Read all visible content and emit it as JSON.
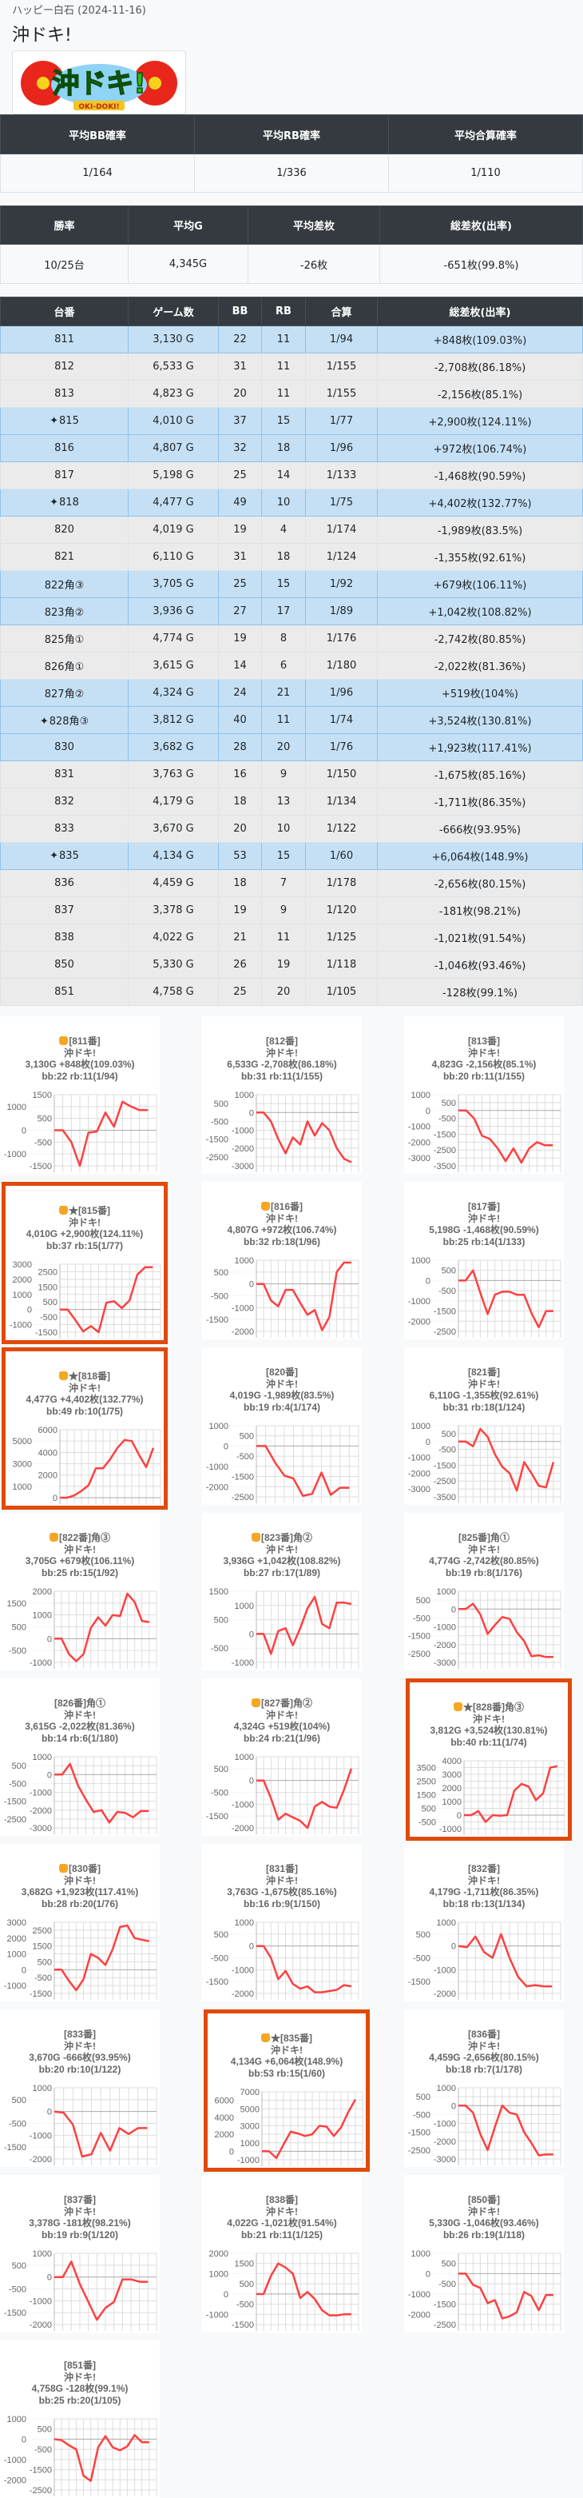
{
  "header": {
    "store": "ハッピー白石 (2024-11-16)",
    "machine": "沖ドキ!",
    "logo_text": "沖ドキ! OKI-DOKI!"
  },
  "summary1": {
    "headers": [
      "平均BB確率",
      "平均RB確率",
      "平均合算確率"
    ],
    "values": [
      "1/164",
      "1/336",
      "1/110"
    ]
  },
  "summary2": {
    "headers": [
      "勝率",
      "平均G",
      "平均差枚",
      "総差枚(出率)"
    ],
    "values": [
      "10/25台",
      "4,345G",
      "-26枚",
      "-651枚(99.8%)"
    ]
  },
  "machines": {
    "headers": [
      "台番",
      "ゲーム数",
      "BB",
      "RB",
      "合算",
      "総差枚(出率)"
    ],
    "rows": [
      {
        "no": "811",
        "g": "3,130 G",
        "bb": "22",
        "rb": "11",
        "total": "1/94",
        "diff": "+848枚(109.03%)",
        "plus": true,
        "spark": false
      },
      {
        "no": "812",
        "g": "6,533 G",
        "bb": "31",
        "rb": "11",
        "total": "1/155",
        "diff": "-2,708枚(86.18%)",
        "plus": false,
        "spark": false
      },
      {
        "no": "813",
        "g": "4,823 G",
        "bb": "20",
        "rb": "11",
        "total": "1/155",
        "diff": "-2,156枚(85.1%)",
        "plus": false,
        "spark": false
      },
      {
        "no": "815",
        "g": "4,010 G",
        "bb": "37",
        "rb": "15",
        "total": "1/77",
        "diff": "+2,900枚(124.11%)",
        "plus": true,
        "spark": true
      },
      {
        "no": "816",
        "g": "4,807 G",
        "bb": "32",
        "rb": "18",
        "total": "1/96",
        "diff": "+972枚(106.74%)",
        "plus": true,
        "spark": false
      },
      {
        "no": "817",
        "g": "5,198 G",
        "bb": "25",
        "rb": "14",
        "total": "1/133",
        "diff": "-1,468枚(90.59%)",
        "plus": false,
        "spark": false
      },
      {
        "no": "818",
        "g": "4,477 G",
        "bb": "49",
        "rb": "10",
        "total": "1/75",
        "diff": "+4,402枚(132.77%)",
        "plus": true,
        "spark": true
      },
      {
        "no": "820",
        "g": "4,019 G",
        "bb": "19",
        "rb": "4",
        "total": "1/174",
        "diff": "-1,989枚(83.5%)",
        "plus": false,
        "spark": false
      },
      {
        "no": "821",
        "g": "6,110 G",
        "bb": "31",
        "rb": "18",
        "total": "1/124",
        "diff": "-1,355枚(92.61%)",
        "plus": false,
        "spark": false
      },
      {
        "no": "822角③",
        "g": "3,705 G",
        "bb": "25",
        "rb": "15",
        "total": "1/92",
        "diff": "+679枚(106.11%)",
        "plus": true,
        "spark": false
      },
      {
        "no": "823角②",
        "g": "3,936 G",
        "bb": "27",
        "rb": "17",
        "total": "1/89",
        "diff": "+1,042枚(108.82%)",
        "plus": true,
        "spark": false
      },
      {
        "no": "825角①",
        "g": "4,774 G",
        "bb": "19",
        "rb": "8",
        "total": "1/176",
        "diff": "-2,742枚(80.85%)",
        "plus": false,
        "spark": false
      },
      {
        "no": "826角①",
        "g": "3,615 G",
        "bb": "14",
        "rb": "6",
        "total": "1/180",
        "diff": "-2,022枚(81.36%)",
        "plus": false,
        "spark": false
      },
      {
        "no": "827角②",
        "g": "4,324 G",
        "bb": "24",
        "rb": "21",
        "total": "1/96",
        "diff": "+519枚(104%)",
        "plus": true,
        "spark": false
      },
      {
        "no": "828角③",
        "g": "3,812 G",
        "bb": "40",
        "rb": "11",
        "total": "1/74",
        "diff": "+3,524枚(130.81%)",
        "plus": true,
        "spark": true
      },
      {
        "no": "830",
        "g": "3,682 G",
        "bb": "28",
        "rb": "20",
        "total": "1/76",
        "diff": "+1,923枚(117.41%)",
        "plus": true,
        "spark": false
      },
      {
        "no": "831",
        "g": "3,763 G",
        "bb": "16",
        "rb": "9",
        "total": "1/150",
        "diff": "-1,675枚(85.16%)",
        "plus": false,
        "spark": false
      },
      {
        "no": "832",
        "g": "4,179 G",
        "bb": "18",
        "rb": "13",
        "total": "1/134",
        "diff": "-1,711枚(86.35%)",
        "plus": false,
        "spark": false
      },
      {
        "no": "833",
        "g": "3,670 G",
        "bb": "20",
        "rb": "10",
        "total": "1/122",
        "diff": "-666枚(93.95%)",
        "plus": false,
        "spark": false
      },
      {
        "no": "835",
        "g": "4,134 G",
        "bb": "53",
        "rb": "15",
        "total": "1/60",
        "diff": "+6,064枚(148.9%)",
        "plus": true,
        "spark": true
      },
      {
        "no": "836",
        "g": "4,459 G",
        "bb": "18",
        "rb": "7",
        "total": "1/178",
        "diff": "-2,656枚(80.15%)",
        "plus": false,
        "spark": false
      },
      {
        "no": "837",
        "g": "3,378 G",
        "bb": "19",
        "rb": "9",
        "total": "1/120",
        "diff": "-181枚(98.21%)",
        "plus": false,
        "spark": false
      },
      {
        "no": "838",
        "g": "4,022 G",
        "bb": "21",
        "rb": "11",
        "total": "1/125",
        "diff": "-1,021枚(91.54%)",
        "plus": false,
        "spark": false
      },
      {
        "no": "850",
        "g": "5,330 G",
        "bb": "26",
        "rb": "19",
        "total": "1/118",
        "diff": "-1,046枚(93.46%)",
        "plus": false,
        "spark": false
      },
      {
        "no": "851",
        "g": "4,758 G",
        "bb": "25",
        "rb": "20",
        "total": "1/105",
        "diff": "-128枚(99.1%)",
        "plus": false,
        "spark": false
      }
    ]
  },
  "icons": {
    "sparkle": "sparkle-icon",
    "thumb": "thumbs-up-icon",
    "star_glyph": "★",
    "sparkle_glyph": "✦"
  },
  "colors": {
    "header_bg": "#343a40",
    "plus_row": "#c5e0f5",
    "minus_row": "#ebebeb",
    "highlight_border": "#e04a0a",
    "line": "#ff4040"
  },
  "chart_data": [
    {
      "type": "line",
      "title": "[811番]",
      "thumb": true,
      "star": false,
      "machine": "沖ドキ!",
      "line3": "3,130G +848枚(109.03%)",
      "line4": "bb:22 rb:11(1/94)",
      "highlight": false,
      "ylim": [
        -1500,
        1500
      ],
      "ystep": 500,
      "values": [
        0,
        0,
        -500,
        -1500,
        -100,
        -50,
        750,
        150,
        1200,
        1000,
        850,
        850
      ]
    },
    {
      "type": "line",
      "title": "[812番]",
      "thumb": false,
      "star": false,
      "machine": "沖ドキ!",
      "line3": "6,533G -2,708枚(86.18%)",
      "line4": "bb:31 rb:11(1/155)",
      "highlight": false,
      "ylim": [
        -3000,
        1000
      ],
      "ystep": 500,
      "values": [
        0,
        0,
        -500,
        -1500,
        -2300,
        -1400,
        -1800,
        -500,
        -1300,
        -600,
        -1000,
        -2000,
        -2600,
        -2800
      ]
    },
    {
      "type": "line",
      "title": "[813番]",
      "thumb": false,
      "star": false,
      "machine": "沖ドキ!",
      "line3": "4,823G -2,156枚(85.1%)",
      "line4": "bb:20 rb:11(1/155)",
      "highlight": false,
      "ylim": [
        -3500,
        1000
      ],
      "ystep": 500,
      "values": [
        0,
        0,
        -500,
        -1600,
        -1800,
        -2400,
        -3200,
        -2400,
        -3300,
        -2400,
        -2000,
        -2200,
        -2200
      ]
    },
    {
      "type": "line",
      "title": "[815番]",
      "thumb": true,
      "star": true,
      "machine": "沖ドキ!",
      "line3": "4,010G +2,900枚(124.11%)",
      "line4": "bb:37 rb:15(1/77)",
      "highlight": true,
      "ylim": [
        -1500,
        3000
      ],
      "ystep": 500,
      "values": [
        0,
        0,
        -700,
        -1450,
        -1100,
        -1500,
        450,
        550,
        100,
        600,
        2300,
        2800,
        2800
      ]
    },
    {
      "type": "line",
      "title": "[816番]",
      "thumb": true,
      "star": false,
      "machine": "沖ドキ!",
      "line3": "4,807G +972枚(106.74%)",
      "line4": "bb:32 rb:18(1/96)",
      "highlight": false,
      "ylim": [
        -2000,
        1000
      ],
      "ystep": 500,
      "values": [
        0,
        0,
        -700,
        -950,
        -250,
        -250,
        -800,
        -1300,
        -1100,
        -1950,
        -1400,
        500,
        900,
        900
      ]
    },
    {
      "type": "line",
      "title": "[817番]",
      "thumb": false,
      "star": false,
      "machine": "沖ドキ!",
      "line3": "5,198G -1,468枚(90.59%)",
      "line4": "bb:25 rb:14(1/133)",
      "highlight": false,
      "ylim": [
        -2500,
        1000
      ],
      "ystep": 500,
      "values": [
        0,
        0,
        500,
        -600,
        -1650,
        -700,
        -550,
        -550,
        -700,
        -700,
        -1600,
        -2300,
        -1500,
        -1500
      ]
    },
    {
      "type": "line",
      "title": "[818番]",
      "thumb": true,
      "star": true,
      "machine": "沖ドキ!",
      "line3": "4,477G +4,402枚(132.77%)",
      "line4": "bb:49 rb:10(1/75)",
      "highlight": true,
      "ylim": [
        0,
        6000
      ],
      "ystep": 1000,
      "values": [
        0,
        0,
        200,
        600,
        1100,
        2600,
        2600,
        3400,
        4400,
        5100,
        5000,
        3800,
        2700,
        4400
      ]
    },
    {
      "type": "line",
      "title": "[820番]",
      "thumb": false,
      "star": false,
      "machine": "沖ドキ!",
      "line3": "4,019G -1,989枚(83.5%)",
      "line4": "bb:19 rb:4(1/174)",
      "highlight": false,
      "ylim": [
        -2500,
        1000
      ],
      "ystep": 500,
      "values": [
        0,
        0,
        -800,
        -1450,
        -1600,
        -2450,
        -2350,
        -1300,
        -2400,
        -2050,
        -2050
      ]
    },
    {
      "type": "line",
      "title": "[821番]",
      "thumb": false,
      "star": false,
      "machine": "沖ドキ!",
      "line3": "6,110G -1,355枚(92.61%)",
      "line4": "bb:31 rb:18(1/124)",
      "highlight": false,
      "ylim": [
        -3500,
        1000
      ],
      "ystep": 500,
      "values": [
        0,
        0,
        -300,
        800,
        300,
        -800,
        -1600,
        -2000,
        -3100,
        -1300,
        -2000,
        -2800,
        -2900,
        -1300
      ]
    },
    {
      "type": "line",
      "title": "[822番]角③",
      "thumb": true,
      "star": false,
      "machine": "沖ドキ!",
      "line3": "3,705G +679枚(106.11%)",
      "line4": "bb:25 rb:15(1/92)",
      "highlight": false,
      "ylim": [
        -1000,
        2000
      ],
      "ystep": 500,
      "values": [
        0,
        0,
        -650,
        -950,
        -650,
        450,
        900,
        550,
        1000,
        950,
        1900,
        1550,
        750,
        700
      ]
    },
    {
      "type": "line",
      "title": "[823番]角②",
      "thumb": true,
      "star": false,
      "machine": "沖ドキ!",
      "line3": "3,936G +1,042枚(108.82%)",
      "line4": "bb:27 rb:17(1/89)",
      "highlight": false,
      "ylim": [
        -1000,
        1500
      ],
      "ystep": 500,
      "values": [
        0,
        0,
        -700,
        100,
        200,
        -400,
        200,
        900,
        1300,
        350,
        200,
        1100,
        1100,
        1050
      ]
    },
    {
      "type": "line",
      "title": "[825番]角①",
      "thumb": false,
      "star": false,
      "machine": "沖ドキ!",
      "line3": "4,774G -2,742枚(80.85%)",
      "line4": "bb:19 rb:8(1/176)",
      "highlight": false,
      "ylim": [
        -3000,
        1000
      ],
      "ystep": 500,
      "values": [
        0,
        0,
        300,
        -300,
        -1400,
        -900,
        -450,
        -550,
        -1300,
        -1800,
        -2650,
        -2600,
        -2700,
        -2700
      ]
    },
    {
      "type": "line",
      "title": "[826番]角①",
      "thumb": false,
      "star": false,
      "machine": "沖ドキ!",
      "line3": "3,615G -2,022枚(81.36%)",
      "line4": "bb:14 rb:6(1/180)",
      "highlight": false,
      "ylim": [
        -3000,
        1000
      ],
      "ystep": 500,
      "values": [
        0,
        0,
        600,
        -600,
        -1400,
        -2100,
        -2000,
        -2700,
        -2100,
        -2150,
        -2400,
        -2050,
        -2050
      ]
    },
    {
      "type": "line",
      "title": "[827番]角②",
      "thumb": true,
      "star": false,
      "machine": "沖ドキ!",
      "line3": "4,324G +519枚(104%)",
      "line4": "bb:24 rb:21(1/96)",
      "highlight": false,
      "ylim": [
        -2000,
        1000
      ],
      "ystep": 500,
      "values": [
        0,
        0,
        -750,
        -1650,
        -1400,
        -1550,
        -1700,
        -2000,
        -1100,
        -900,
        -1100,
        -1150,
        -400,
        500
      ]
    },
    {
      "type": "line",
      "title": "[828番]角③",
      "thumb": true,
      "star": true,
      "machine": "沖ドキ!",
      "line3": "3,812G +3,524枚(130.81%)",
      "line4": "bb:40 rb:11(1/74)",
      "highlight": true,
      "ylim": [
        -1000,
        4000
      ],
      "ystep": 500,
      "values": [
        0,
        0,
        300,
        -500,
        0,
        -50,
        0,
        1800,
        2300,
        2100,
        1100,
        1600,
        3500,
        3600
      ]
    },
    {
      "type": "line",
      "title": "[830番]",
      "thumb": true,
      "star": false,
      "machine": "沖ドキ!",
      "line3": "3,682G +1,923枚(117.41%)",
      "line4": "bb:28 rb:20(1/76)",
      "highlight": false,
      "ylim": [
        -1500,
        3000
      ],
      "ystep": 500,
      "values": [
        0,
        0,
        -700,
        -1300,
        -600,
        1000,
        750,
        300,
        1300,
        2700,
        2800,
        2000,
        1900,
        1800
      ]
    },
    {
      "type": "line",
      "title": "[831番]",
      "thumb": false,
      "star": false,
      "machine": "沖ドキ!",
      "line3": "3,763G -1,675枚(85.16%)",
      "line4": "bb:16 rb:9(1/150)",
      "highlight": false,
      "ylim": [
        -2000,
        1000
      ],
      "ystep": 500,
      "values": [
        0,
        0,
        -500,
        -1400,
        -1050,
        -1600,
        -1800,
        -1700,
        -1950,
        -1950,
        -1900,
        -1850,
        -1650,
        -1700
      ]
    },
    {
      "type": "line",
      "title": "[832番]",
      "thumb": false,
      "star": false,
      "machine": "沖ドキ!",
      "line3": "4,179G -1,711枚(86.35%)",
      "line4": "bb:18 rb:13(1/134)",
      "highlight": false,
      "ylim": [
        -2000,
        1000
      ],
      "ystep": 500,
      "values": [
        0,
        -50,
        400,
        -250,
        -500,
        500,
        -500,
        -1300,
        -1700,
        -1650,
        -1700,
        -1700
      ]
    },
    {
      "type": "line",
      "title": "[833番]",
      "thumb": false,
      "star": false,
      "machine": "沖ドキ!",
      "line3": "3,670G -666枚(93.95%)",
      "line4": "bb:20 rb:10(1/122)",
      "highlight": false,
      "ylim": [
        -2000,
        1000
      ],
      "ystep": 500,
      "values": [
        0,
        -50,
        -550,
        -1900,
        -1800,
        -900,
        -1650,
        -700,
        -950,
        -700,
        -700
      ]
    },
    {
      "type": "line",
      "title": "[835番]",
      "thumb": true,
      "star": true,
      "machine": "沖ドキ!",
      "line3": "4,134G +6,064枚(148.9%)",
      "line4": "bb:53 rb:15(1/60)",
      "highlight": true,
      "ylim": [
        -1000,
        7000
      ],
      "ystep": 1000,
      "values": [
        0,
        0,
        -800,
        800,
        2300,
        2100,
        1800,
        2000,
        3000,
        2900,
        1800,
        2800,
        4600,
        6100
      ]
    },
    {
      "type": "line",
      "title": "[836番]",
      "thumb": false,
      "star": false,
      "machine": "沖ドキ!",
      "line3": "4,459G -2,656枚(80.15%)",
      "line4": "bb:18 rb:7(1/178)",
      "highlight": false,
      "ylim": [
        -3000,
        1000
      ],
      "ystep": 500,
      "values": [
        0,
        0,
        -400,
        -1600,
        -2500,
        -1200,
        0,
        -400,
        -500,
        -1500,
        -2100,
        -2800,
        -2750,
        -2750
      ]
    },
    {
      "type": "line",
      "title": "[837番]",
      "thumb": false,
      "star": false,
      "machine": "沖ドキ!",
      "line3": "3,378G -181枚(98.21%)",
      "line4": "bb:19 rb:9(1/120)",
      "highlight": false,
      "ylim": [
        -2000,
        1000
      ],
      "ystep": 500,
      "values": [
        0,
        0,
        650,
        -300,
        -1050,
        -1800,
        -1300,
        -1050,
        -100,
        -100,
        -200,
        -200
      ]
    },
    {
      "type": "line",
      "title": "[838番]",
      "thumb": false,
      "star": false,
      "machine": "沖ドキ!",
      "line3": "4,022G -1,021枚(91.54%)",
      "line4": "bb:21 rb:11(1/125)",
      "highlight": false,
      "ylim": [
        -1500,
        2000
      ],
      "ystep": 500,
      "values": [
        0,
        0,
        900,
        1500,
        1300,
        1000,
        -200,
        100,
        -250,
        -800,
        -1050,
        -1050,
        -1000,
        -1000
      ]
    },
    {
      "type": "line",
      "title": "[850番]",
      "thumb": false,
      "star": false,
      "machine": "沖ドキ!",
      "line3": "5,330G -1,046枚(93.46%)",
      "line4": "bb:26 rb:19(1/118)",
      "highlight": false,
      "ylim": [
        -2500,
        1000
      ],
      "ystep": 500,
      "values": [
        0,
        0,
        -550,
        -700,
        -1450,
        -1300,
        -2200,
        -2100,
        -1900,
        -900,
        -1100,
        -1800,
        -1050,
        -1050
      ]
    },
    {
      "type": "line",
      "title": "[851番]",
      "thumb": false,
      "star": false,
      "machine": "沖ドキ!",
      "line3": "4,758G -128枚(99.1%)",
      "line4": "bb:25 rb:20(1/105)",
      "highlight": false,
      "ylim": [
        -2500,
        1000
      ],
      "ystep": 500,
      "values": [
        0,
        -50,
        -300,
        -500,
        -1800,
        -2050,
        -400,
        150,
        -400,
        -550,
        -350,
        200,
        -150,
        -150
      ]
    }
  ]
}
